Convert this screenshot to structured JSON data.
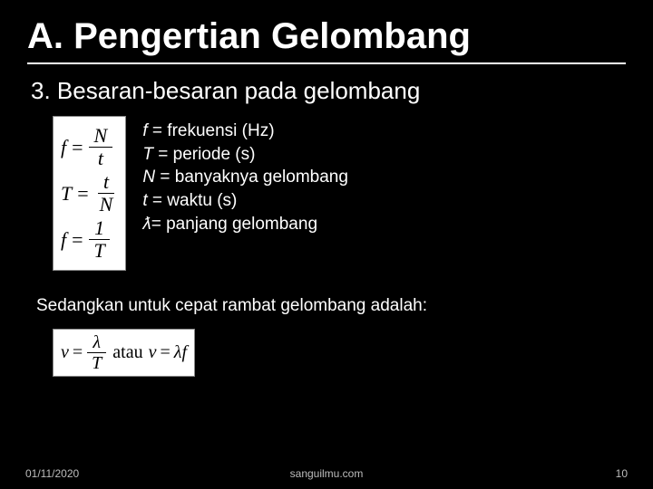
{
  "slide": {
    "title": "A. Pengertian Gelombang",
    "subtitle": "3. Besaran-besaran pada gelombang",
    "formulas": [
      {
        "lhs": "f",
        "num": "N",
        "den": "t"
      },
      {
        "lhs": "T",
        "num": "t",
        "den": "N"
      },
      {
        "lhs": "f",
        "num": "1",
        "den": "T"
      }
    ],
    "definitions": [
      {
        "sym": "f",
        "text": " = frekuensi (Hz)"
      },
      {
        "sym": "T",
        "text": " = periode (s)"
      },
      {
        "sym": "N",
        "text": " = banyaknya gelombang"
      },
      {
        "sym": "t",
        "text": " = waktu (s)"
      },
      {
        "sym": "ƛ",
        "text": "= panjang gelombang"
      }
    ],
    "subtext": "Sedangkan untuk cepat rambat gelombang adalah:",
    "velocity": {
      "v": "v",
      "eq": "=",
      "lambda": "λ",
      "T": "T",
      "atau": "atau",
      "lf": "λf"
    }
  },
  "footer": {
    "date": "01/11/2020",
    "source": "sanguilmu.com",
    "page": "10"
  },
  "colors": {
    "background": "#000000",
    "text": "#ffffff",
    "formula_bg": "#ffffff",
    "formula_text": "#000000",
    "footer_text": "#bdbdbd"
  }
}
